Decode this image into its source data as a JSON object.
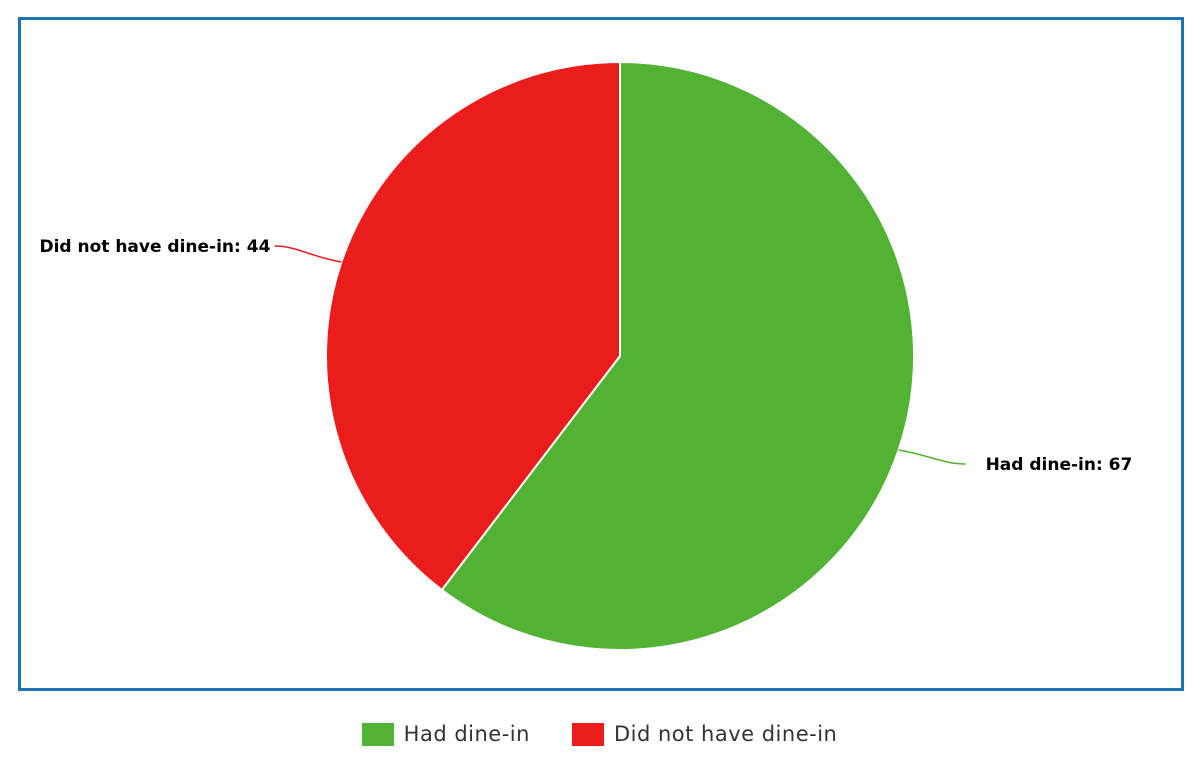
{
  "chart_data": {
    "type": "pie",
    "categories": [
      "Had dine-in",
      "Did not have dine-in"
    ],
    "values": [
      67,
      44
    ],
    "colors": [
      "#52b234",
      "#eb1c1c"
    ],
    "data_labels": [
      "Had dine-in: 67",
      "Did not have dine-in: 44"
    ],
    "title": "",
    "legend_position": "bottom-center"
  },
  "legend": {
    "items": [
      {
        "label": "Had dine-in",
        "color": "#52b234"
      },
      {
        "label": "Did not have dine-in",
        "color": "#eb1c1c"
      }
    ]
  },
  "colors": {
    "frame_border": "#1e73b4"
  }
}
